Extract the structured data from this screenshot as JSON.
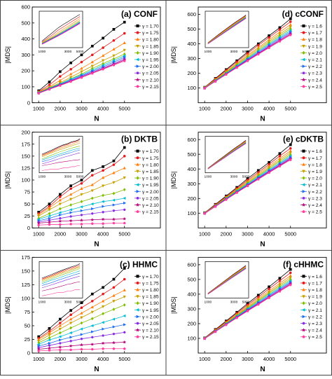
{
  "figure": {
    "colors": [
      "#000000",
      "#e41a1c",
      "#ff7f0e",
      "#c8a000",
      "#7fbf00",
      "#00bcd4",
      "#1e6cf0",
      "#8a2be2",
      "#b40078",
      "#ff3fa0"
    ],
    "markers": [
      "square",
      "circle",
      "triangle-up",
      "triangle-down",
      "diamond",
      "triangle-left",
      "triangle-right",
      "hexagon",
      "star",
      "pentagon"
    ]
  },
  "chart_data": [
    {
      "id": "a",
      "type": "line",
      "title": "(a) CONF",
      "xlabel": "N",
      "ylabel": "|MDS|",
      "xlim": [
        700,
        5400
      ],
      "ylim": [
        0,
        600
      ],
      "xticks": [
        1000,
        2000,
        3000,
        4000,
        5000
      ],
      "yticks": [
        0,
        100,
        200,
        300,
        400,
        500,
        600
      ],
      "legend_position": "right",
      "legend_prefix": "γ =",
      "x": [
        1000,
        1500,
        2000,
        2500,
        3000,
        3500,
        4000,
        4500,
        5000
      ],
      "series": [
        {
          "name": "1.70",
          "values": [
            75,
            130,
            195,
            250,
            300,
            355,
            405,
            460,
            505
          ]
        },
        {
          "name": "1.75",
          "values": [
            70,
            112,
            165,
            210,
            255,
            300,
            345,
            390,
            435
          ]
        },
        {
          "name": "1.80",
          "values": [
            68,
            100,
            140,
            180,
            215,
            255,
            295,
            335,
            375
          ]
        },
        {
          "name": "1.85",
          "values": [
            65,
            95,
            125,
            160,
            195,
            230,
            265,
            295,
            330
          ]
        },
        {
          "name": "1.90",
          "values": [
            64,
            92,
            120,
            150,
            180,
            215,
            245,
            275,
            305
          ]
        },
        {
          "name": "1.95",
          "values": [
            63,
            90,
            118,
            148,
            175,
            205,
            235,
            265,
            295
          ]
        },
        {
          "name": "2.00",
          "values": [
            62,
            88,
            115,
            142,
            170,
            198,
            225,
            255,
            285
          ]
        },
        {
          "name": "2.05",
          "values": [
            61,
            86,
            112,
            138,
            165,
            192,
            218,
            245,
            275
          ]
        },
        {
          "name": "2.10",
          "values": [
            60,
            85,
            110,
            135,
            160,
            187,
            213,
            240,
            268
          ]
        },
        {
          "name": "2.15",
          "values": [
            59,
            84,
            108,
            133,
            158,
            184,
            210,
            236,
            262
          ]
        }
      ]
    },
    {
      "id": "b",
      "type": "line",
      "title": "(b) DKTB",
      "xlabel": "N",
      "ylabel": "|MDS|",
      "xlim": [
        700,
        5400
      ],
      "ylim": [
        0,
        200
      ],
      "xticks": [
        1000,
        2000,
        3000,
        4000,
        5000
      ],
      "yticks": [
        0,
        25,
        50,
        75,
        100,
        125,
        150,
        175,
        200
      ],
      "legend_position": "right",
      "legend_prefix": "γ =",
      "x": [
        1000,
        1500,
        2000,
        2500,
        3000,
        3500,
        4000,
        4500,
        5000
      ],
      "series": [
        {
          "name": "1.70",
          "values": [
            33,
            50,
            70,
            88,
            100,
            120,
            128,
            140,
            168
          ]
        },
        {
          "name": "1.75",
          "values": [
            30,
            45,
            65,
            82,
            93,
            110,
            120,
            132,
            150
          ]
        },
        {
          "name": "1.80",
          "values": [
            28,
            42,
            58,
            70,
            82,
            90,
            105,
            115,
            125
          ]
        },
        {
          "name": "1.85",
          "values": [
            25,
            38,
            50,
            60,
            70,
            78,
            88,
            95,
            105
          ]
        },
        {
          "name": "1.90",
          "values": [
            20,
            30,
            40,
            48,
            55,
            62,
            68,
            72,
            80
          ]
        },
        {
          "name": "1.95",
          "values": [
            18,
            25,
            32,
            38,
            44,
            50,
            55,
            58,
            62
          ]
        },
        {
          "name": "2.00",
          "values": [
            15,
            20,
            27,
            32,
            36,
            40,
            45,
            48,
            52
          ]
        },
        {
          "name": "2.05",
          "values": [
            12,
            16,
            20,
            24,
            27,
            30,
            33,
            36,
            38
          ]
        },
        {
          "name": "2.10",
          "values": [
            10,
            12,
            14,
            15,
            16,
            17,
            18,
            18,
            19
          ]
        },
        {
          "name": "2.15",
          "values": [
            6,
            7,
            7,
            8,
            8,
            9,
            9,
            10,
            10
          ]
        }
      ]
    },
    {
      "id": "c",
      "type": "line",
      "title": "(c) HHMC",
      "xlabel": "N",
      "ylabel": "|MDS|",
      "xlim": [
        700,
        5400
      ],
      "ylim": [
        0,
        175
      ],
      "xticks": [
        1000,
        2000,
        3000,
        4000,
        5000
      ],
      "yticks": [
        0,
        25,
        50,
        75,
        100,
        125,
        150,
        175
      ],
      "legend_position": "right",
      "legend_prefix": "γ =",
      "x": [
        1000,
        1500,
        2000,
        2500,
        3000,
        3500,
        4000,
        4500,
        5000
      ],
      "series": [
        {
          "name": "1.70",
          "values": [
            30,
            45,
            62,
            78,
            92,
            108,
            120,
            135,
            155
          ]
        },
        {
          "name": "1.75",
          "values": [
            27,
            40,
            55,
            70,
            83,
            95,
            108,
            120,
            135
          ]
        },
        {
          "name": "1.80",
          "values": [
            25,
            37,
            50,
            62,
            73,
            84,
            95,
            105,
            115
          ]
        },
        {
          "name": "1.85",
          "values": [
            22,
            33,
            44,
            55,
            65,
            75,
            85,
            95,
            103
          ]
        },
        {
          "name": "1.90",
          "values": [
            19,
            28,
            37,
            46,
            55,
            63,
            72,
            80,
            88
          ]
        },
        {
          "name": "1.95",
          "values": [
            16,
            24,
            30,
            37,
            44,
            50,
            56,
            62,
            68
          ]
        },
        {
          "name": "2.00",
          "values": [
            13,
            18,
            24,
            29,
            34,
            39,
            44,
            48,
            52
          ]
        },
        {
          "name": "2.05",
          "values": [
            10,
            14,
            18,
            22,
            26,
            29,
            32,
            35,
            38
          ]
        },
        {
          "name": "2.10",
          "values": [
            7,
            9,
            11,
            13,
            15,
            16,
            18,
            19,
            20
          ]
        },
        {
          "name": "2.15",
          "values": [
            4,
            5,
            6,
            6,
            7,
            7,
            8,
            8,
            8
          ]
        }
      ]
    },
    {
      "id": "d",
      "type": "line",
      "title": "(d) cCONF",
      "xlabel": "N",
      "ylabel": "|MDS|",
      "xlim": [
        700,
        5400
      ],
      "ylim": [
        0,
        650
      ],
      "xticks": [
        1000,
        2000,
        3000,
        4000,
        5000
      ],
      "yticks": [
        100,
        200,
        300,
        400,
        500,
        600
      ],
      "legend_position": "right",
      "legend_prefix": "γ =",
      "x": [
        1000,
        1500,
        2000,
        2500,
        3000,
        3500,
        4000,
        4500,
        5000
      ],
      "series": [
        {
          "name": "1.6",
          "values": [
            105,
            165,
            225,
            285,
            345,
            400,
            455,
            510,
            570
          ]
        },
        {
          "name": "1.7",
          "values": [
            104,
            162,
            220,
            278,
            335,
            390,
            443,
            497,
            550
          ]
        },
        {
          "name": "1.8",
          "values": [
            103,
            158,
            213,
            268,
            323,
            375,
            428,
            480,
            530
          ]
        },
        {
          "name": "1.9",
          "values": [
            102,
            155,
            208,
            262,
            315,
            366,
            417,
            466,
            515
          ]
        },
        {
          "name": "2.0",
          "values": [
            101,
            152,
            204,
            256,
            307,
            357,
            407,
            455,
            502
          ]
        },
        {
          "name": "2.1",
          "values": [
            100,
            150,
            200,
            250,
            300,
            350,
            398,
            445,
            490
          ]
        },
        {
          "name": "2.2",
          "values": [
            99,
            148,
            197,
            246,
            295,
            343,
            390,
            436,
            480
          ]
        },
        {
          "name": "2.3",
          "values": [
            99,
            147,
            195,
            243,
            290,
            337,
            383,
            428,
            472
          ]
        },
        {
          "name": "2.4",
          "values": [
            98,
            146,
            193,
            240,
            287,
            333,
            378,
            422,
            465
          ]
        },
        {
          "name": "2.5",
          "values": [
            98,
            145,
            192,
            238,
            284,
            329,
            373,
            417,
            460
          ]
        }
      ]
    },
    {
      "id": "e",
      "type": "line",
      "title": "(e) cDKTB",
      "xlabel": "N",
      "ylabel": "|MDS|",
      "xlim": [
        700,
        5400
      ],
      "ylim": [
        0,
        650
      ],
      "xticks": [
        1000,
        2000,
        3000,
        4000,
        5000
      ],
      "yticks": [
        100,
        200,
        300,
        400,
        500,
        600
      ],
      "legend_position": "right",
      "legend_prefix": "γ =",
      "x": [
        1000,
        1500,
        2000,
        2500,
        3000,
        3500,
        4000,
        4500,
        5000
      ],
      "series": [
        {
          "name": "1.6",
          "values": [
            103,
            160,
            217,
            275,
            335,
            390,
            445,
            505,
            565
          ]
        },
        {
          "name": "1.7",
          "values": [
            102,
            157,
            212,
            268,
            325,
            378,
            432,
            488,
            540
          ]
        },
        {
          "name": "1.8",
          "values": [
            101,
            154,
            208,
            262,
            317,
            368,
            420,
            472,
            523
          ]
        },
        {
          "name": "1.9",
          "values": [
            100,
            152,
            205,
            258,
            310,
            360,
            410,
            460,
            510
          ]
        },
        {
          "name": "2.0",
          "values": [
            100,
            150,
            202,
            254,
            304,
            353,
            402,
            450,
            498
          ]
        },
        {
          "name": "2.1",
          "values": [
            99,
            149,
            199,
            250,
            299,
            347,
            395,
            441,
            488
          ]
        },
        {
          "name": "2.2",
          "values": [
            99,
            148,
            197,
            246,
            294,
            341,
            388,
            434,
            480
          ]
        },
        {
          "name": "2.3",
          "values": [
            98,
            147,
            195,
            243,
            290,
            337,
            383,
            428,
            473
          ]
        },
        {
          "name": "2.4",
          "values": [
            98,
            146,
            193,
            241,
            287,
            333,
            378,
            423,
            467
          ]
        },
        {
          "name": "2.5",
          "values": [
            98,
            145,
            192,
            239,
            285,
            330,
            375,
            419,
            462
          ]
        }
      ]
    },
    {
      "id": "f",
      "type": "line",
      "title": "(f) cHHMC",
      "xlabel": "N",
      "ylabel": "|MDS|",
      "xlim": [
        700,
        5400
      ],
      "ylim": [
        0,
        650
      ],
      "xticks": [
        1000,
        2000,
        3000,
        4000,
        5000
      ],
      "yticks": [
        100,
        200,
        300,
        400,
        500,
        600
      ],
      "legend_position": "right",
      "legend_prefix": "γ =",
      "x": [
        1000,
        1500,
        2000,
        2500,
        3000,
        3500,
        4000,
        4500,
        5000
      ],
      "series": [
        {
          "name": "1.6",
          "values": [
            103,
            160,
            218,
            277,
            337,
            393,
            450,
            508,
            568
          ]
        },
        {
          "name": "1.7",
          "values": [
            102,
            157,
            213,
            270,
            327,
            381,
            436,
            491,
            545
          ]
        },
        {
          "name": "1.8",
          "values": [
            101,
            154,
            208,
            263,
            318,
            370,
            422,
            474,
            525
          ]
        },
        {
          "name": "1.9",
          "values": [
            100,
            152,
            205,
            258,
            311,
            362,
            412,
            462,
            512
          ]
        },
        {
          "name": "2.0",
          "values": [
            100,
            150,
            202,
            254,
            305,
            355,
            404,
            452,
            500
          ]
        },
        {
          "name": "2.1",
          "values": [
            99,
            149,
            199,
            250,
            300,
            348,
            396,
            443,
            490
          ]
        },
        {
          "name": "2.2",
          "values": [
            99,
            148,
            197,
            246,
            295,
            342,
            389,
            435,
            481
          ]
        },
        {
          "name": "2.3",
          "values": [
            98,
            147,
            195,
            243,
            291,
            337,
            383,
            429,
            474
          ]
        },
        {
          "name": "2.4",
          "values": [
            98,
            146,
            193,
            241,
            288,
            333,
            378,
            423,
            468
          ]
        },
        {
          "name": "2.5",
          "values": [
            98,
            145,
            192,
            239,
            285,
            330,
            375,
            419,
            463
          ]
        }
      ]
    }
  ]
}
